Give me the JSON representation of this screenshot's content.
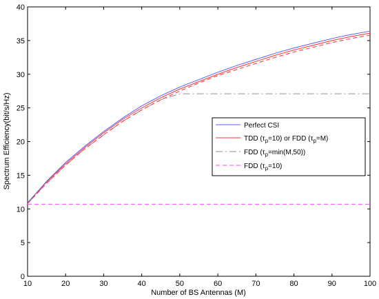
{
  "chart_data": {
    "type": "line",
    "title": "",
    "xlabel": "Number of BS Antennas (M)",
    "ylabel": "Spectrum Efficiency(bit/s/Hz)",
    "xlim": [
      10,
      100
    ],
    "ylim": [
      0,
      40
    ],
    "xticks": [
      10,
      20,
      30,
      40,
      50,
      60,
      70,
      80,
      90,
      100
    ],
    "yticks": [
      0,
      5,
      10,
      15,
      20,
      25,
      30,
      35,
      40
    ],
    "grid": false,
    "legend_position": "center-right",
    "x": [
      10,
      15,
      20,
      25,
      30,
      35,
      40,
      45,
      50,
      55,
      60,
      65,
      70,
      75,
      80,
      85,
      90,
      95,
      100
    ],
    "series": [
      {
        "name": "Perfect CSI",
        "color": "#5a5aff",
        "dash": "solid",
        "values": [
          10.9,
          14.1,
          16.9,
          19.3,
          21.5,
          23.5,
          25.3,
          26.8,
          28.1,
          29.2,
          30.3,
          31.3,
          32.2,
          33.1,
          33.9,
          34.6,
          35.3,
          35.9,
          36.4
        ]
      },
      {
        "name": "TDD (τp=10) or FDD (τp=M)",
        "label_parts": {
          "a": "TDD (τ",
          "b": "p",
          "c": "=10) or FDD (τ",
          "d": "p",
          "e": "=M)"
        },
        "color": "#ff3030",
        "dash": "solid",
        "values": [
          10.9,
          14.0,
          16.7,
          19.1,
          21.3,
          23.3,
          25.0,
          26.5,
          27.8,
          28.9,
          30.0,
          31.0,
          31.9,
          32.8,
          33.6,
          34.3,
          35.0,
          35.6,
          36.1
        ]
      },
      {
        "name": "FDD (τp=min(M,50))",
        "label_parts": {
          "a": "FDD (τ",
          "b": "p",
          "c": "=min(M,50))"
        },
        "color": "#909090",
        "dash": "dashdot",
        "values": [
          10.8,
          13.8,
          16.5,
          18.9,
          21.0,
          23.0,
          24.7,
          26.2,
          27.1,
          27.1,
          27.1,
          27.1,
          27.1,
          27.1,
          27.1,
          27.1,
          27.1,
          27.1,
          27.1
        ]
      },
      {
        "name": "FDD (τp=10)",
        "label_parts": {
          "a": "FDD (τ",
          "b": "p",
          "c": "=10)"
        },
        "color": "#ff44ff",
        "dash": "dashed",
        "values": [
          10.7,
          10.7,
          10.7,
          10.7,
          10.7,
          10.7,
          10.7,
          10.7,
          10.7,
          10.7,
          10.7,
          10.7,
          10.7,
          10.7,
          10.7,
          10.7,
          10.7,
          10.7,
          10.7
        ]
      }
    ],
    "dashed_overlay_series": {
      "name": "TDD (τp=10) or FDD (τp=M)",
      "color": "#ff3030",
      "values": [
        10.8,
        13.8,
        16.5,
        18.9,
        21.0,
        23.0,
        24.7,
        26.2,
        27.5,
        28.7,
        29.8,
        30.7,
        31.6,
        32.5,
        33.3,
        34.0,
        34.7,
        35.3,
        35.8
      ]
    }
  }
}
